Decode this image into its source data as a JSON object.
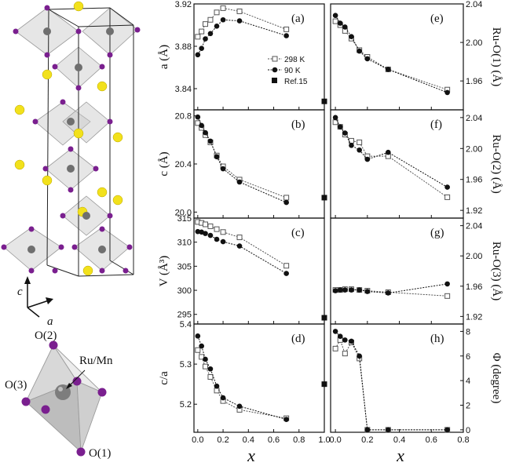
{
  "structure": {
    "axis_c": "c",
    "axis_a": "a",
    "label_o2": "O(2)",
    "label_o3": "O(3)",
    "label_o1": "O(1)",
    "label_ru": "Ru/Mn"
  },
  "chart_data": {
    "type": "scatter",
    "x_label": "x",
    "legend": [
      "298 K",
      "90 K",
      "Ref.15"
    ],
    "series_colors": {
      "298 K": "#555555",
      "90 K": "#111111",
      "Ref.15": "#111111"
    },
    "panels": [
      {
        "id": "a",
        "label": "(a)",
        "ylabel": "a (Å)",
        "ylim": [
          3.82,
          3.92
        ],
        "yticks": [
          "3.84",
          "3.88",
          "3.92"
        ],
        "series": [
          {
            "name": "298 K",
            "x": [
              0,
              0.03,
              0.06,
              0.1,
              0.15,
              0.2,
              0.33,
              0.7
            ],
            "y": [
              3.889,
              3.894,
              3.901,
              3.905,
              3.912,
              3.916,
              3.913,
              3.896
            ]
          },
          {
            "name": "90 K",
            "x": [
              0,
              0.03,
              0.06,
              0.1,
              0.15,
              0.2,
              0.33,
              0.7
            ],
            "y": [
              3.872,
              3.878,
              3.887,
              3.892,
              3.899,
              3.905,
              3.904,
              3.89
            ]
          },
          {
            "name": "Ref.15",
            "x": [
              1.0
            ],
            "y": [
              3.828
            ]
          }
        ]
      },
      {
        "id": "b",
        "label": "(b)",
        "ylabel": "c (Å)",
        "ylim": [
          19.95,
          20.85
        ],
        "yticks": [
          "20.0",
          "20.4",
          "20.8"
        ],
        "series": [
          {
            "name": "298 K",
            "x": [
              0,
              0.03,
              0.06,
              0.1,
              0.15,
              0.2,
              0.33,
              0.7
            ],
            "y": [
              20.74,
              20.7,
              20.64,
              20.58,
              20.47,
              20.38,
              20.27,
              20.12
            ]
          },
          {
            "name": "90 K",
            "x": [
              0,
              0.03,
              0.06,
              0.1,
              0.15,
              0.2,
              0.33,
              0.7
            ],
            "y": [
              20.79,
              20.72,
              20.66,
              20.59,
              20.46,
              20.36,
              20.25,
              20.08
            ]
          },
          {
            "name": "Ref.15",
            "x": [
              1.0
            ],
            "y": [
              20.12
            ]
          }
        ]
      },
      {
        "id": "c",
        "label": "(c)",
        "ylabel": "V (Å³)",
        "ylim": [
          293,
          315
        ],
        "yticks": [
          "295",
          "300",
          "305",
          "310",
          "315"
        ],
        "series": [
          {
            "name": "298 K",
            "x": [
              0,
              0.03,
              0.06,
              0.1,
              0.15,
              0.2,
              0.33,
              0.7
            ],
            "y": [
              314.2,
              314.0,
              313.7,
              313.3,
              312.7,
              312.1,
              311.0,
              305.1
            ]
          },
          {
            "name": "90 K",
            "x": [
              0,
              0.03,
              0.06,
              0.1,
              0.15,
              0.2,
              0.33,
              0.7
            ],
            "y": [
              312.2,
              312.1,
              311.8,
              311.4,
              310.6,
              310.1,
              309.2,
              303.5
            ]
          },
          {
            "name": "Ref.15",
            "x": [
              1.0
            ],
            "y": [
              294.3
            ]
          }
        ]
      },
      {
        "id": "d",
        "label": "(d)",
        "ylabel": "c/a",
        "ylim": [
          5.13,
          5.4
        ],
        "yticks": [
          "5.2",
          "5.3",
          "5.4"
        ],
        "series": [
          {
            "name": "298 K",
            "x": [
              0,
              0.03,
              0.06,
              0.1,
              0.15,
              0.2,
              0.33,
              0.7
            ],
            "y": [
              5.335,
              5.318,
              5.294,
              5.268,
              5.234,
              5.208,
              5.186,
              5.165
            ]
          },
          {
            "name": "90 K",
            "x": [
              0,
              0.03,
              0.06,
              0.1,
              0.15,
              0.2,
              0.33,
              0.7
            ],
            "y": [
              5.37,
              5.345,
              5.312,
              5.288,
              5.245,
              5.216,
              5.195,
              5.162
            ]
          },
          {
            "name": "Ref.15",
            "x": [
              1.0
            ],
            "y": [
              5.25
            ]
          }
        ]
      },
      {
        "id": "e",
        "label": "(e)",
        "ylabel": "Ru-O(1) (Å)",
        "ylim": [
          1.93,
          2.04
        ],
        "yticks": [
          "1.96",
          "2.00",
          "2.04"
        ],
        "series": [
          {
            "name": "298 K",
            "x": [
              0,
              0.03,
              0.06,
              0.1,
              0.15,
              0.2,
              0.33,
              0.7
            ],
            "y": [
              2.022,
              2.018,
              2.012,
              2.004,
              1.992,
              1.985,
              1.972,
              1.951
            ]
          },
          {
            "name": "90 K",
            "x": [
              0,
              0.03,
              0.06,
              0.1,
              0.15,
              0.2,
              0.33,
              0.7
            ],
            "y": [
              2.028,
              2.02,
              2.016,
              2.006,
              1.991,
              1.983,
              1.972,
              1.948
            ]
          }
        ]
      },
      {
        "id": "f",
        "label": "(f)",
        "ylabel": "Ru-O(2) (Å)",
        "ylim": [
          1.91,
          2.05
        ],
        "yticks": [
          "1.92",
          "1.96",
          "2.00",
          "2.04"
        ],
        "series": [
          {
            "name": "298 K",
            "x": [
              0,
              0.03,
              0.06,
              0.1,
              0.15,
              0.2,
              0.33,
              0.7
            ],
            "y": [
              2.034,
              2.028,
              2.018,
              2.01,
              2.008,
              1.99,
              1.99,
              1.937
            ]
          },
          {
            "name": "90 K",
            "x": [
              0,
              0.03,
              0.06,
              0.1,
              0.15,
              0.2,
              0.33,
              0.7
            ],
            "y": [
              2.04,
              2.028,
              2.02,
              2.004,
              1.998,
              1.986,
              1.995,
              1.95
            ]
          }
        ]
      },
      {
        "id": "g",
        "label": "(g)",
        "ylabel": "Ru-O(3) (Å)",
        "ylim": [
          1.91,
          2.05
        ],
        "yticks": [
          "1.92",
          "1.96",
          "2.00",
          "2.04"
        ],
        "series": [
          {
            "name": "298 K",
            "x": [
              0,
              0.03,
              0.06,
              0.1,
              0.15,
              0.2,
              0.33,
              0.7
            ],
            "y": [
              1.955,
              1.955,
              1.956,
              1.956,
              1.955,
              1.954,
              1.952,
              1.947
            ]
          },
          {
            "name": "90 K",
            "x": [
              0,
              0.03,
              0.06,
              0.1,
              0.15,
              0.2,
              0.33,
              0.7
            ],
            "y": [
              1.954,
              1.955,
              1.955,
              1.955,
              1.955,
              1.953,
              1.951,
              1.963
            ]
          }
        ]
      },
      {
        "id": "h",
        "label": "(h)",
        "ylabel": "Φ (degree)",
        "ylim": [
          -0.2,
          8.6
        ],
        "yticks": [
          "0",
          "2",
          "4",
          "6",
          "8"
        ],
        "series": [
          {
            "name": "298 K",
            "x": [
              0,
              0.03,
              0.06,
              0.1,
              0.15,
              0.2,
              0.33,
              0.7
            ],
            "y": [
              6.6,
              7.3,
              6.2,
              7.1,
              5.8,
              0,
              0,
              0
            ]
          },
          {
            "name": "90 K",
            "x": [
              0,
              0.03,
              0.06,
              0.1,
              0.15,
              0.2,
              0.33,
              0.7
            ],
            "y": [
              8.0,
              7.6,
              7.3,
              7.2,
              6.0,
              0,
              0,
              0
            ]
          }
        ]
      }
    ],
    "x_ticks_left": [
      "0.0",
      "0.2",
      "0.4",
      "0.6",
      "0.8",
      "1.0"
    ],
    "x_ticks_right": [
      "0.0",
      "0.2",
      "0.4",
      "0.6",
      "0.8"
    ]
  }
}
